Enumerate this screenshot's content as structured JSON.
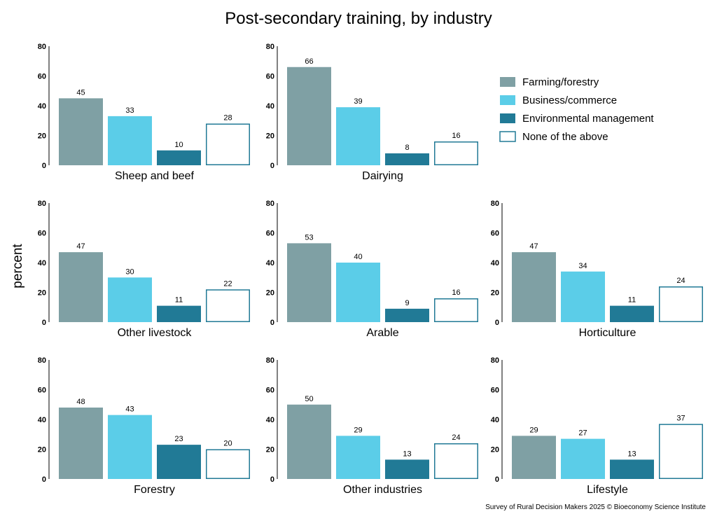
{
  "chart_data": {
    "type": "bar",
    "title": "Post-secondary training, by industry",
    "ylabel": "percent",
    "ylim": [
      0,
      80
    ],
    "yticks": [
      0,
      20,
      40,
      60,
      80
    ],
    "caption": "Survey of Rural Decision Makers 2025 © Bioeconomy Science Institute",
    "legend_position": "top-right",
    "series": [
      {
        "name": "Farming/forestry",
        "color": "#7fa0a4"
      },
      {
        "name": "Business/commerce",
        "color": "#5bcde8"
      },
      {
        "name": "Environmental management",
        "color": "#217a96"
      },
      {
        "name": "None of the above",
        "color": "#ffffff",
        "stroke": "#217a96"
      }
    ],
    "panels": [
      {
        "title": "Sheep and beef",
        "values": [
          45,
          33,
          10,
          28
        ]
      },
      {
        "title": "Dairying",
        "values": [
          66,
          39,
          8,
          16
        ]
      },
      {
        "title": "Other livestock",
        "values": [
          47,
          30,
          11,
          22
        ]
      },
      {
        "title": "Arable",
        "values": [
          53,
          40,
          9,
          16
        ]
      },
      {
        "title": "Horticulture",
        "values": [
          47,
          34,
          11,
          24
        ]
      },
      {
        "title": "Forestry",
        "values": [
          48,
          43,
          23,
          20
        ]
      },
      {
        "title": "Other industries",
        "values": [
          50,
          29,
          13,
          24
        ]
      },
      {
        "title": "Lifestyle",
        "values": [
          29,
          27,
          13,
          37
        ]
      }
    ]
  }
}
